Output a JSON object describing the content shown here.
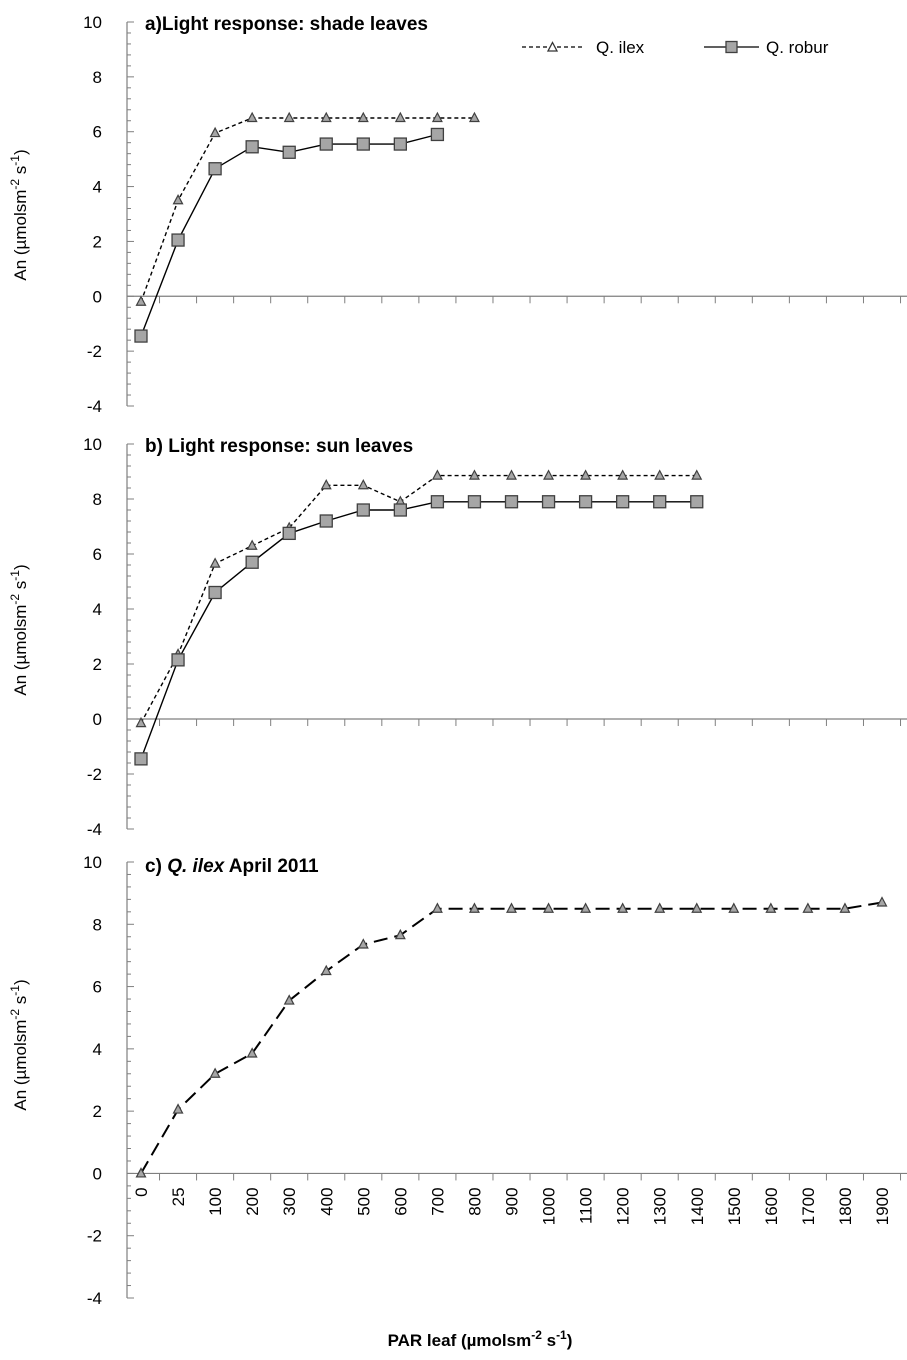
{
  "chart_data": {
    "type": "line",
    "categories": [
      "0",
      "25",
      "100",
      "200",
      "300",
      "400",
      "500",
      "600",
      "700",
      "800",
      "900",
      "1000",
      "1100",
      "1200",
      "1300",
      "1400",
      "1500",
      "1600",
      "1700",
      "1800",
      "1900"
    ],
    "ylim": [
      -4,
      10
    ],
    "yticks": [
      "-4",
      "-2",
      "0",
      "2",
      "4",
      "6",
      "8",
      "10"
    ],
    "xlabel": "PAR leaf (µmolsm",
    "xlabel_sup": "-2",
    "xlabel_mid": " s",
    "xlabel_sup2": "-1",
    "xlabel_end": ")",
    "panels": [
      {
        "title": "a)Light response: shade leaves",
        "ylabel": "An  (µmolsm",
        "ylabel_sup": "-2",
        "ylabel_mid": " s",
        "ylabel_sup2": "-1",
        "ylabel_end": ")",
        "legend": {
          "position": "top-right",
          "items": [
            "Q. ilex",
            "Q. robur"
          ]
        },
        "series": [
          {
            "name": "Q. ilex",
            "marker": "triangle",
            "dash": "short",
            "values": [
              -0.2,
              3.5,
              5.95,
              6.5,
              6.5,
              6.5,
              6.5,
              6.5,
              6.5,
              6.5
            ]
          },
          {
            "name": "Q. robur",
            "marker": "square",
            "dash": "solid",
            "values": [
              -1.45,
              2.05,
              4.65,
              5.45,
              5.25,
              5.55,
              5.55,
              5.55,
              5.9
            ]
          }
        ]
      },
      {
        "title": "b) Light response: sun leaves",
        "ylabel": "An (µmolsm",
        "ylabel_sup": "-2",
        "ylabel_mid": " s",
        "ylabel_sup2": "-1",
        "ylabel_end": ")",
        "series": [
          {
            "name": "Q. ilex",
            "marker": "triangle",
            "dash": "short",
            "values": [
              -0.15,
              2.35,
              5.65,
              6.3,
              6.95,
              8.5,
              8.5,
              7.9,
              8.85,
              8.85,
              8.85,
              8.85,
              8.85,
              8.85,
              8.85,
              8.85
            ]
          },
          {
            "name": "Q. robur",
            "marker": "square",
            "dash": "solid",
            "values": [
              -1.45,
              2.15,
              4.6,
              5.7,
              6.75,
              7.2,
              7.6,
              7.6,
              7.9,
              7.9,
              7.9,
              7.9,
              7.9,
              7.9,
              7.9,
              7.9
            ]
          }
        ]
      },
      {
        "title_prefix": "c) ",
        "title_italic": "Q. ilex",
        "title_suffix": " April 2011",
        "ylabel": "An (µmolsm",
        "ylabel_sup": "-2",
        "ylabel_mid": " s",
        "ylabel_sup2": "-1",
        "ylabel_end": ")",
        "series": [
          {
            "name": "Q. ilex",
            "marker": "triangle",
            "dash": "long",
            "values": [
              0,
              2.05,
              3.2,
              3.85,
              5.55,
              6.5,
              7.35,
              7.65,
              8.5,
              8.5,
              8.5,
              8.5,
              8.5,
              8.5,
              8.5,
              8.5,
              8.5,
              8.5,
              8.5,
              8.5,
              8.7
            ]
          }
        ]
      }
    ]
  }
}
